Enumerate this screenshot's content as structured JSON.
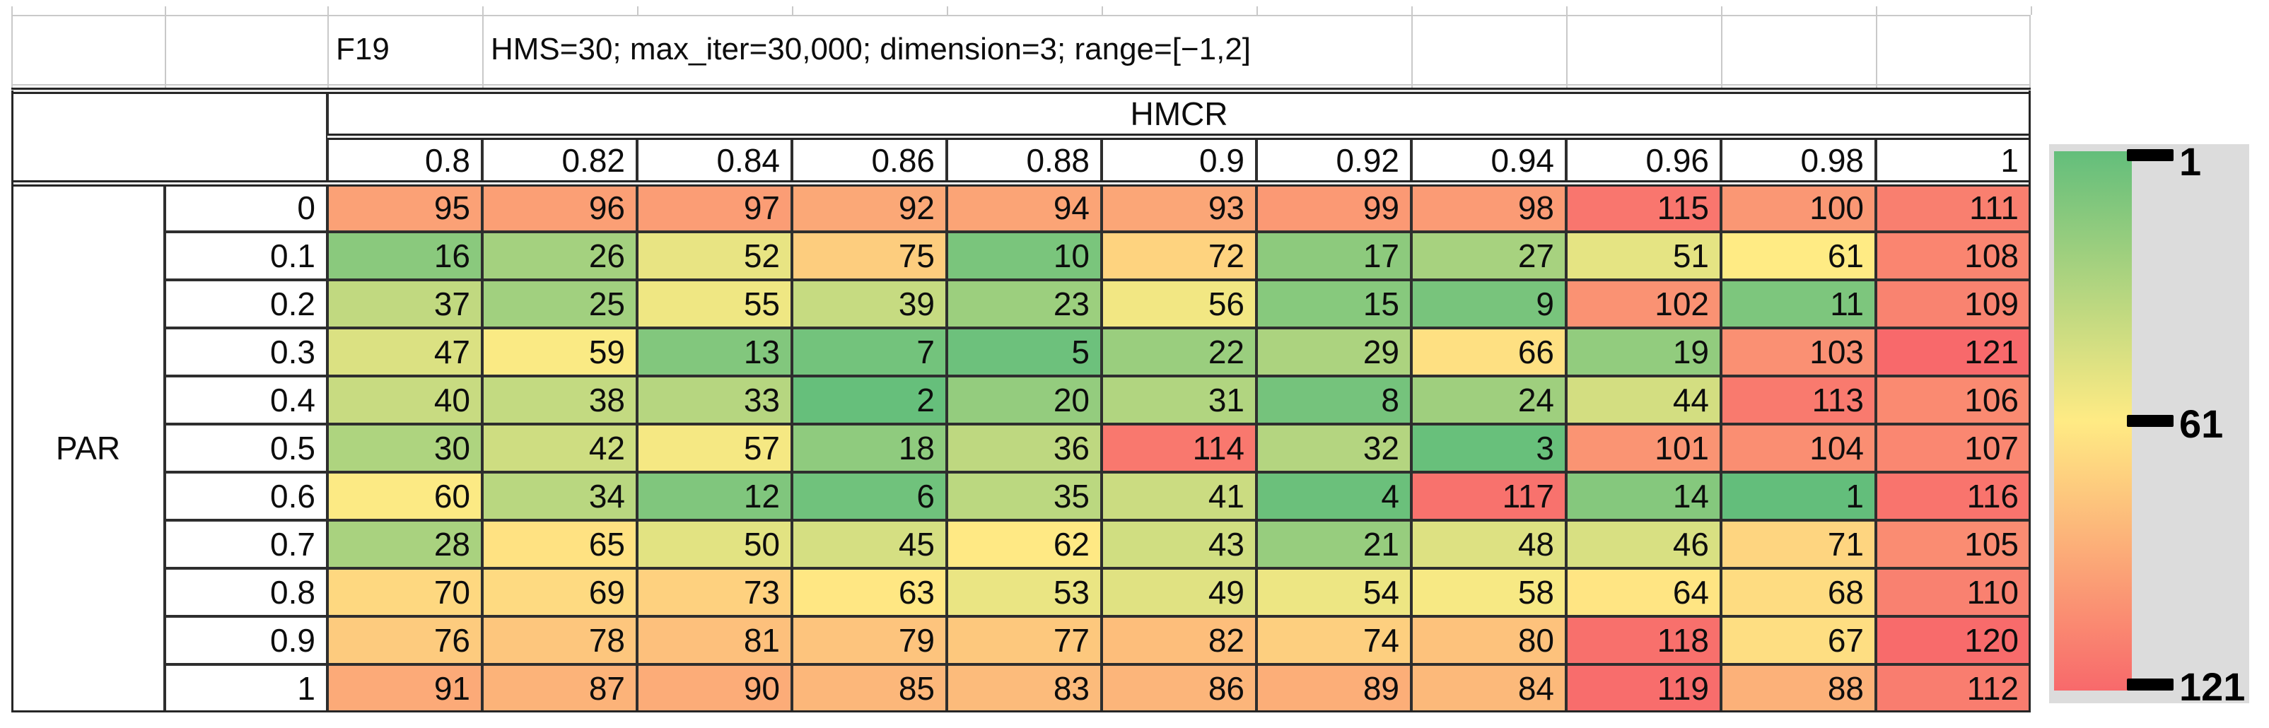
{
  "title_row": {
    "function_id": "F19",
    "settings": "HMS=30; max_iter=30,000; dimension=3; range=[−1,2]"
  },
  "legend": {
    "tick_labels": [
      "1",
      "61",
      "121"
    ],
    "min_value": 1,
    "mid_value": 61,
    "max_value": 121,
    "min_color": "#63be7b",
    "mid_color": "#ffeb84",
    "max_color": "#f8696b",
    "panel_color": "#dcdcdc"
  },
  "chart_data": {
    "type": "heatmap",
    "title": "F19",
    "subtitle": "HMS=30; max_iter=30,000; dimension=3; range=[−1,2]",
    "x_label": "HMCR",
    "y_label": "PAR",
    "x_categories": [
      "0.8",
      "0.82",
      "0.84",
      "0.86",
      "0.88",
      "0.9",
      "0.92",
      "0.94",
      "0.96",
      "0.98",
      "1"
    ],
    "y_categories": [
      "0",
      "0.1",
      "0.2",
      "0.3",
      "0.4",
      "0.5",
      "0.6",
      "0.7",
      "0.8",
      "0.9",
      "1"
    ],
    "values": [
      [
        95,
        96,
        97,
        92,
        94,
        93,
        99,
        98,
        115,
        100,
        111
      ],
      [
        16,
        26,
        52,
        75,
        10,
        72,
        17,
        27,
        51,
        61,
        108
      ],
      [
        37,
        25,
        55,
        39,
        23,
        56,
        15,
        9,
        102,
        11,
        109
      ],
      [
        47,
        59,
        13,
        7,
        5,
        22,
        29,
        66,
        19,
        103,
        121
      ],
      [
        40,
        38,
        33,
        2,
        20,
        31,
        8,
        24,
        44,
        113,
        106
      ],
      [
        30,
        42,
        57,
        18,
        36,
        114,
        32,
        3,
        101,
        104,
        107
      ],
      [
        60,
        34,
        12,
        6,
        35,
        41,
        4,
        117,
        14,
        1,
        116
      ],
      [
        28,
        65,
        50,
        45,
        62,
        43,
        21,
        48,
        46,
        71,
        105
      ],
      [
        70,
        69,
        73,
        63,
        53,
        49,
        54,
        58,
        64,
        68,
        110
      ],
      [
        76,
        78,
        81,
        79,
        77,
        82,
        74,
        80,
        118,
        67,
        120
      ],
      [
        91,
        87,
        90,
        85,
        83,
        86,
        89,
        84,
        119,
        88,
        112
      ]
    ],
    "zlim": [
      1,
      121
    ],
    "grid": true,
    "legend_position": "right",
    "colorbar_ticks": [
      1,
      61,
      121
    ]
  }
}
